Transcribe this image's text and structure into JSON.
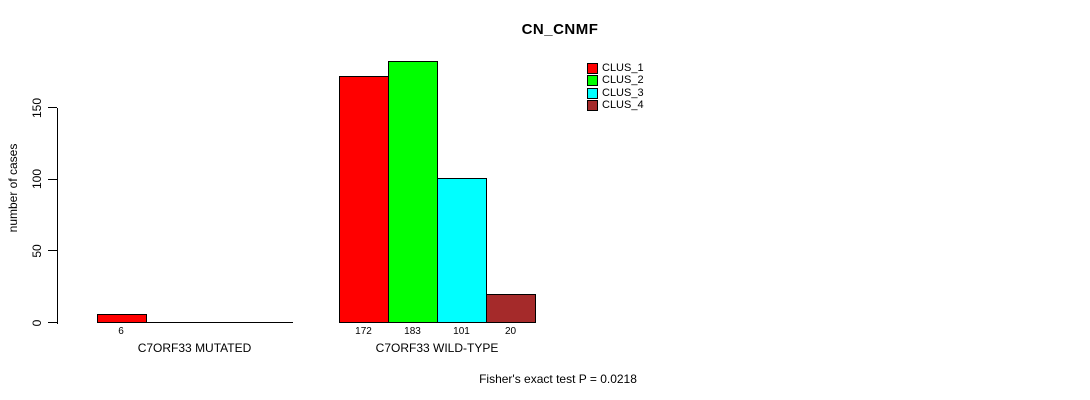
{
  "chart_data": {
    "type": "bar",
    "title": "CN_CNMF",
    "xlabel": "",
    "ylabel": "number of cases",
    "categories": [
      "C7ORF33 MUTATED",
      "C7ORF33 WILD-TYPE"
    ],
    "series": [
      {
        "name": "CLUS_1",
        "color": "#FF0000",
        "values": [
          6,
          172
        ]
      },
      {
        "name": "CLUS_2",
        "color": "#00FF00",
        "values": [
          0,
          183
        ]
      },
      {
        "name": "CLUS_3",
        "color": "#00FFFF",
        "values": [
          0,
          101
        ]
      },
      {
        "name": "CLUS_4",
        "color": "#A52A2A",
        "values": [
          0,
          20
        ]
      }
    ],
    "bar_value_labels": [
      [
        "6",
        "",
        "",
        ""
      ],
      [
        "172",
        "183",
        "101",
        "20"
      ]
    ],
    "yticks": [
      0,
      50,
      100,
      150
    ],
    "ylim": [
      0,
      190
    ],
    "grid": false,
    "legend_position": "top-right",
    "annotation": "Fisher's exact test P = 0.0218",
    "axis_color": "#000000",
    "background_color": "#FFFFFF"
  }
}
